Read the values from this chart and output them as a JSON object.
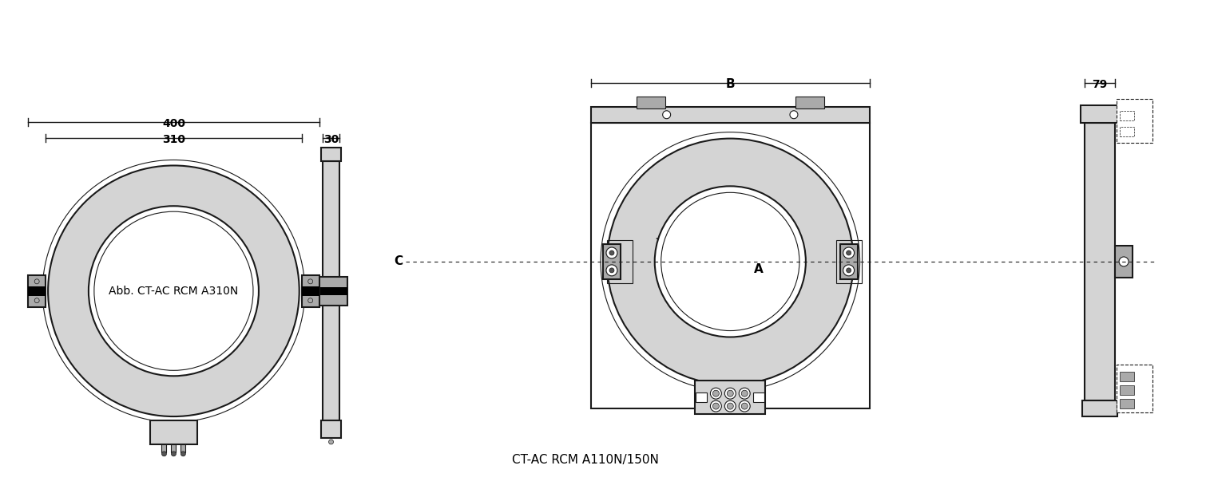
{
  "title_right": "CT-AC RCM A110N/150N",
  "label_left": "Abb. CT-AC RCM A310N",
  "dim_310": "310",
  "dim_400": "400",
  "dim_30": "30",
  "dim_B": "B",
  "dim_79": "79",
  "dim_A": "A",
  "dim_C": "C",
  "bg_color": "#ffffff",
  "gray_light": "#d4d4d4",
  "gray_medium": "#aaaaaa",
  "black": "#000000",
  "line_color": "#1a1a1a",
  "line_width": 1.5
}
